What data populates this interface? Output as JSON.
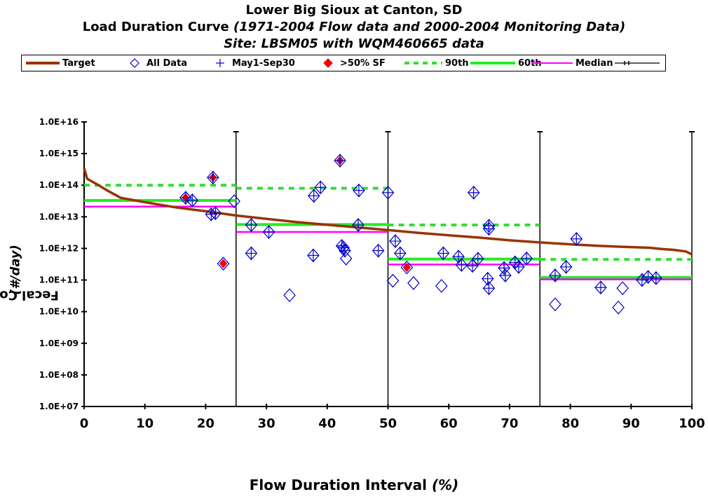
{
  "chart_data": {
    "type": "scatter",
    "title_line1": "Lower Big Sioux at Canton, SD",
    "title_line2": "Load Duration Curve",
    "title_line2_italic": "(1971-2004 Flow data and 2000-2004 Monitoring Data)",
    "title_line3": "Site:  LBSM05 with WQM460665 data",
    "xlabel": "Flow Duration Interval",
    "xlabel_unit": "(%)",
    "ylabel": "Fecal Coliform",
    "ylabel_unit": "(#/day)",
    "xlim": [
      0,
      100
    ],
    "ylim_log10": [
      7,
      16
    ],
    "x_ticks": [
      0,
      10,
      20,
      30,
      40,
      50,
      60,
      70,
      80,
      90,
      100
    ],
    "y_tick_labels": [
      "1.0E+07",
      "1.0E+08",
      "1.0E+09",
      "1.0E+10",
      "1.0E+11",
      "1.0E+12",
      "1.0E+13",
      "1.0E+14",
      "1.0E+15",
      "1.0E+16"
    ],
    "zone_boundaries_x": [
      25,
      50,
      75,
      100
    ],
    "legend": {
      "target": "Target",
      "all_data": "All Data",
      "summer": "May1-Sep30",
      "sf": ">50% SF",
      "p90": "90th",
      "p60": "60th",
      "median": "Median"
    },
    "colors": {
      "target": "#993300",
      "all_data": "#0000CC",
      "sf": "#FF0000",
      "p90": "#33DD33",
      "p60": "#22EE22",
      "median": "#FF00FF"
    },
    "target_curve": [
      [
        0,
        350000000000000.0
      ],
      [
        0.5,
        160000000000000.0
      ],
      [
        2,
        110000000000000.0
      ],
      [
        4,
        65000000000000.0
      ],
      [
        6,
        40000000000000.0
      ],
      [
        10,
        29000000000000.0
      ],
      [
        15,
        20000000000000.0
      ],
      [
        20,
        15000000000000.0
      ],
      [
        25,
        11000000000000.0
      ],
      [
        30,
        8600000000000.0
      ],
      [
        35,
        6800000000000.0
      ],
      [
        40,
        5600000000000.0
      ],
      [
        45,
        4600000000000.0
      ],
      [
        50,
        3800000000000.0
      ],
      [
        55,
        3100000000000.0
      ],
      [
        60,
        2600000000000.0
      ],
      [
        65,
        2200000000000.0
      ],
      [
        70,
        1800000000000.0
      ],
      [
        75,
        1550000000000.0
      ],
      [
        80,
        1350000000000.0
      ],
      [
        85,
        1200000000000.0
      ],
      [
        90,
        1100000000000.0
      ],
      [
        93,
        1050000000000.0
      ],
      [
        95,
        960000000000.0
      ],
      [
        97,
        900000000000.0
      ],
      [
        99,
        800000000000.0
      ],
      [
        100,
        650000000000.0
      ]
    ],
    "percentile_90": [
      {
        "x0": 0,
        "x1": 25,
        "y": 100000000000000.0
      },
      {
        "x0": 25,
        "x1": 50,
        "y": 80000000000000.0
      },
      {
        "x0": 50,
        "x1": 75,
        "y": 5500000000000.0
      },
      {
        "x0": 75,
        "x1": 100,
        "y": 450000000000.0
      }
    ],
    "percentile_60": [
      {
        "x0": 0,
        "x1": 25,
        "y": 33000000000000.0
      },
      {
        "x0": 25,
        "x1": 50,
        "y": 5700000000000.0
      },
      {
        "x0": 50,
        "x1": 75,
        "y": 460000000000.0
      },
      {
        "x0": 75,
        "x1": 100,
        "y": 120000000000.0
      }
    ],
    "median": [
      {
        "x0": 0,
        "x1": 25,
        "y": 21000000000000.0
      },
      {
        "x0": 25,
        "x1": 50,
        "y": 3300000000000.0
      },
      {
        "x0": 50,
        "x1": 75,
        "y": 310000000000.0
      },
      {
        "x0": 75,
        "x1": 100,
        "y": 105000000000.0
      }
    ],
    "points": [
      {
        "x": 16.7,
        "y": 40000000000000.0,
        "summer": true,
        "sf": true
      },
      {
        "x": 17.8,
        "y": 33000000000000.0,
        "summer": true,
        "sf": false
      },
      {
        "x": 20.9,
        "y": 12000000000000.0,
        "summer": true,
        "sf": false
      },
      {
        "x": 21.2,
        "y": 175000000000000.0,
        "summer": true,
        "sf": true
      },
      {
        "x": 21.6,
        "y": 13000000000000.0,
        "summer": true,
        "sf": false
      },
      {
        "x": 22.9,
        "y": 330000000000.0,
        "summer": false,
        "sf": true
      },
      {
        "x": 24.7,
        "y": 31000000000000.0,
        "summer": false,
        "sf": false
      },
      {
        "x": 27.5,
        "y": 5500000000000.0,
        "summer": true,
        "sf": false
      },
      {
        "x": 27.5,
        "y": 700000000000.0,
        "summer": true,
        "sf": false
      },
      {
        "x": 30.4,
        "y": 3300000000000.0,
        "summer": true,
        "sf": false
      },
      {
        "x": 33.8,
        "y": 33000000000.0,
        "summer": false,
        "sf": false
      },
      {
        "x": 37.7,
        "y": 600000000000.0,
        "summer": true,
        "sf": false
      },
      {
        "x": 37.8,
        "y": 46000000000000.0,
        "summer": true,
        "sf": false
      },
      {
        "x": 38.9,
        "y": 85000000000000.0,
        "summer": true,
        "sf": false
      },
      {
        "x": 42.1,
        "y": 600000000000000.0,
        "summer": true,
        "sf": true
      },
      {
        "x": 42.4,
        "y": 1200000000000.0,
        "summer": true,
        "sf": false
      },
      {
        "x": 42.7,
        "y": 1050000000000.0,
        "summer": true,
        "sf": false
      },
      {
        "x": 42.9,
        "y": 850000000000.0,
        "summer": true,
        "sf": false
      },
      {
        "x": 43.1,
        "y": 480000000000.0,
        "summer": false,
        "sf": false
      },
      {
        "x": 45.1,
        "y": 5500000000000.0,
        "summer": true,
        "sf": false
      },
      {
        "x": 45.2,
        "y": 68000000000000.0,
        "summer": true,
        "sf": false
      },
      {
        "x": 48.4,
        "y": 850000000000.0,
        "summer": true,
        "sf": false
      },
      {
        "x": 50.0,
        "y": 58000000000000.0,
        "summer": true,
        "sf": false
      },
      {
        "x": 50.8,
        "y": 95000000000.0,
        "summer": false,
        "sf": false
      },
      {
        "x": 51.2,
        "y": 1700000000000.0,
        "summer": true,
        "sf": false
      },
      {
        "x": 52.0,
        "y": 700000000000.0,
        "summer": true,
        "sf": false
      },
      {
        "x": 53.1,
        "y": 250000000000.0,
        "summer": false,
        "sf": true
      },
      {
        "x": 54.2,
        "y": 80000000000.0,
        "summer": false,
        "sf": false
      },
      {
        "x": 58.8,
        "y": 65000000000.0,
        "summer": false,
        "sf": false
      },
      {
        "x": 59.1,
        "y": 700000000000.0,
        "summer": true,
        "sf": false
      },
      {
        "x": 61.6,
        "y": 550000000000.0,
        "summer": true,
        "sf": false
      },
      {
        "x": 62.1,
        "y": 300000000000.0,
        "summer": true,
        "sf": false
      },
      {
        "x": 63.9,
        "y": 280000000000.0,
        "summer": true,
        "sf": false
      },
      {
        "x": 64.1,
        "y": 58000000000000.0,
        "summer": true,
        "sf": false
      },
      {
        "x": 64.8,
        "y": 470000000000.0,
        "summer": true,
        "sf": false
      },
      {
        "x": 66.4,
        "y": 110000000000.0,
        "summer": true,
        "sf": false
      },
      {
        "x": 66.6,
        "y": 5200000000000.0,
        "summer": true,
        "sf": false
      },
      {
        "x": 66.6,
        "y": 4200000000000.0,
        "summer": true,
        "sf": false
      },
      {
        "x": 66.6,
        "y": 55000000000.0,
        "summer": true,
        "sf": false
      },
      {
        "x": 69.1,
        "y": 240000000000.0,
        "summer": true,
        "sf": false
      },
      {
        "x": 69.3,
        "y": 140000000000.0,
        "summer": true,
        "sf": false
      },
      {
        "x": 70.9,
        "y": 360000000000.0,
        "summer": true,
        "sf": false
      },
      {
        "x": 71.5,
        "y": 260000000000.0,
        "summer": true,
        "sf": false
      },
      {
        "x": 72.8,
        "y": 480000000000.0,
        "summer": true,
        "sf": false
      },
      {
        "x": 77.5,
        "y": 140000000000.0,
        "summer": true,
        "sf": false
      },
      {
        "x": 77.5,
        "y": 17000000000.0,
        "summer": false,
        "sf": false
      },
      {
        "x": 79.3,
        "y": 260000000000.0,
        "summer": true,
        "sf": false
      },
      {
        "x": 81.0,
        "y": 2000000000000.0,
        "summer": true,
        "sf": false
      },
      {
        "x": 85.0,
        "y": 58000000000.0,
        "summer": true,
        "sf": false
      },
      {
        "x": 87.9,
        "y": 13500000000.0,
        "summer": false,
        "sf": false
      },
      {
        "x": 88.6,
        "y": 55000000000.0,
        "summer": false,
        "sf": false
      },
      {
        "x": 91.8,
        "y": 100000000000.0,
        "summer": true,
        "sf": false
      },
      {
        "x": 92.8,
        "y": 125000000000.0,
        "summer": true,
        "sf": false
      },
      {
        "x": 94.1,
        "y": 115000000000.0,
        "summer": true,
        "sf": false
      }
    ]
  }
}
